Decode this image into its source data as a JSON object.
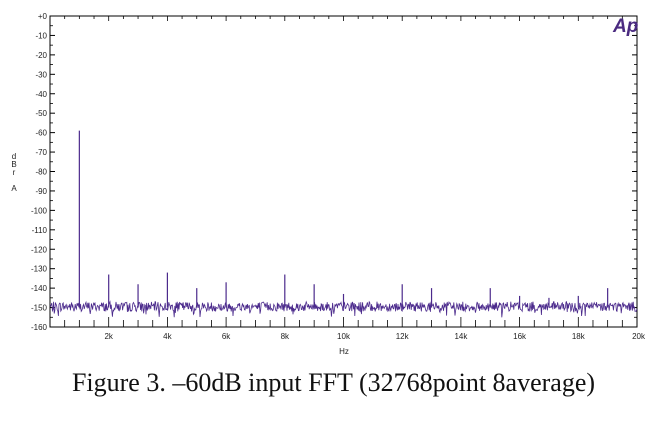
{
  "caption": "Figure 3. –60dB input FFT (32768point 8average)",
  "logo_text": "Ap",
  "colors": {
    "trace": "#4b2a8c",
    "axis": "#000000",
    "background": "#ffffff"
  },
  "chart_data": {
    "type": "line",
    "xlabel": "Hz",
    "ylabel": [
      "d",
      "B",
      "r",
      "",
      "A"
    ],
    "xlim": [
      20,
      20000
    ],
    "ylim": [
      -160,
      0
    ],
    "yticks": [
      {
        "value": 0,
        "label": "+0"
      },
      {
        "value": -10,
        "label": "-10"
      },
      {
        "value": -20,
        "label": "-20"
      },
      {
        "value": -30,
        "label": "-30"
      },
      {
        "value": -40,
        "label": "-40"
      },
      {
        "value": -50,
        "label": "-50"
      },
      {
        "value": -60,
        "label": "-60"
      },
      {
        "value": -70,
        "label": "-70"
      },
      {
        "value": -80,
        "label": "-80"
      },
      {
        "value": -90,
        "label": "-90"
      },
      {
        "value": -100,
        "label": "-100"
      },
      {
        "value": -110,
        "label": "-110"
      },
      {
        "value": -120,
        "label": "-120"
      },
      {
        "value": -130,
        "label": "-130"
      },
      {
        "value": -140,
        "label": "-140"
      },
      {
        "value": -150,
        "label": "-150"
      },
      {
        "value": -160,
        "label": "-160"
      }
    ],
    "xticks": [
      {
        "value": 2000,
        "label": "2k"
      },
      {
        "value": 4000,
        "label": "4k"
      },
      {
        "value": 6000,
        "label": "6k"
      },
      {
        "value": 8000,
        "label": "8k"
      },
      {
        "value": 10000,
        "label": "10k"
      },
      {
        "value": 12000,
        "label": "12k"
      },
      {
        "value": 14000,
        "label": "14k"
      },
      {
        "value": 16000,
        "label": "16k"
      },
      {
        "value": 18000,
        "label": "18k"
      },
      {
        "value": 20000,
        "label": "20k"
      }
    ],
    "minor_x_step": 500,
    "noise_floor": [
      -147,
      -152
    ],
    "peaks": [
      {
        "x": 1000,
        "y": -59
      },
      {
        "x": 2000,
        "y": -133
      },
      {
        "x": 3000,
        "y": -138
      },
      {
        "x": 4000,
        "y": -132
      },
      {
        "x": 5000,
        "y": -140
      },
      {
        "x": 6000,
        "y": -137
      },
      {
        "x": 8000,
        "y": -133
      },
      {
        "x": 9000,
        "y": -138
      },
      {
        "x": 10000,
        "y": -143
      },
      {
        "x": 12000,
        "y": -138
      },
      {
        "x": 13000,
        "y": -140
      },
      {
        "x": 15000,
        "y": -140
      },
      {
        "x": 16000,
        "y": -144
      },
      {
        "x": 17000,
        "y": -145
      },
      {
        "x": 18000,
        "y": -144
      },
      {
        "x": 19000,
        "y": -140
      }
    ]
  }
}
